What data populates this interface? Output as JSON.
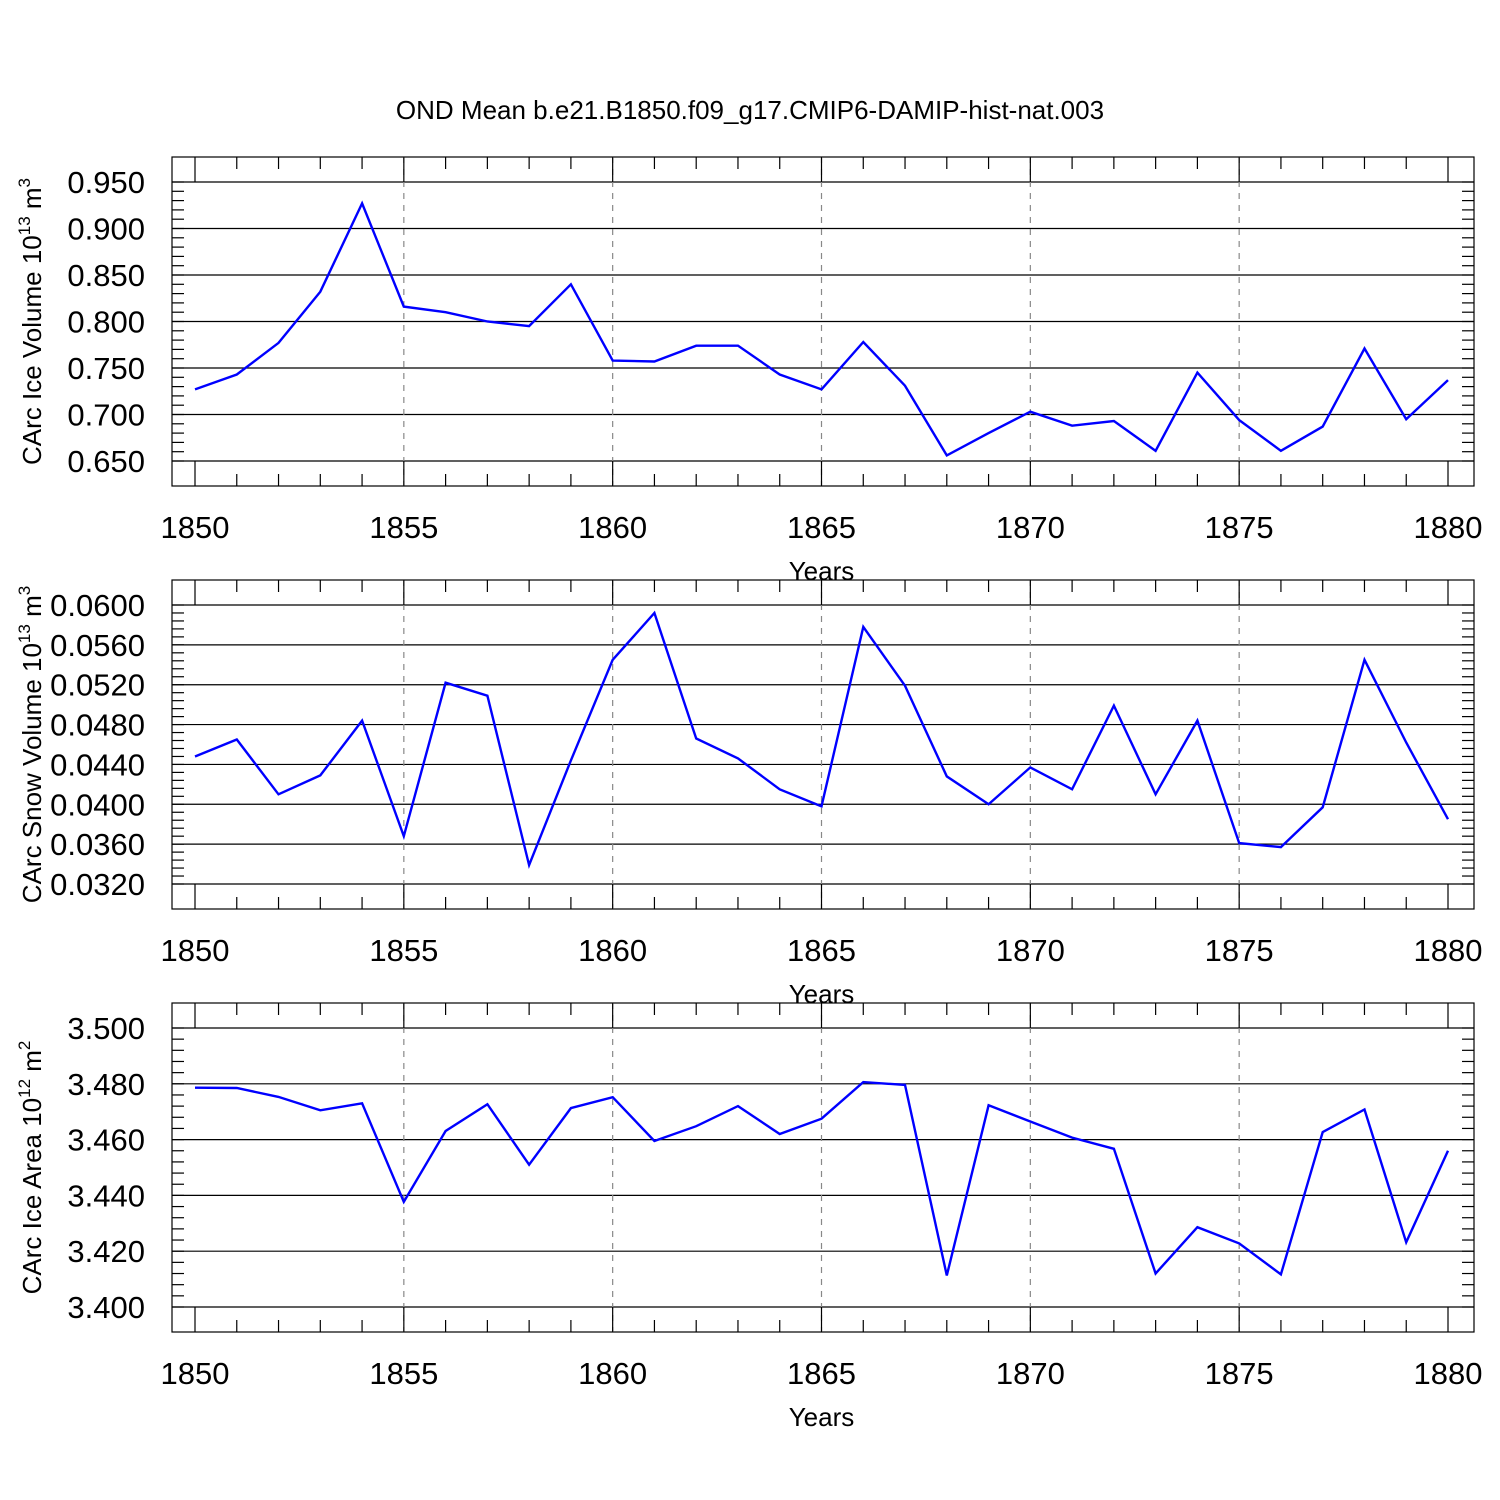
{
  "title": "OND Mean b.e21.B1850.f09_g17.CMIP6-DAMIP-hist-nat.003",
  "chart_data": [
    {
      "type": "line",
      "xlabel": "Years",
      "ylabel": "CArc Ice Volume 10",
      "ylabel_exp": "13",
      "ylabel_unit": " m",
      "ylabel_unit_exp": "3",
      "xlim": [
        1850,
        1880
      ],
      "ylim": [
        0.65,
        0.95
      ],
      "xticks": [
        "1850",
        "1855",
        "1860",
        "1865",
        "1870",
        "1875",
        "1880"
      ],
      "yticks": [
        "0.650",
        "0.700",
        "0.750",
        "0.800",
        "0.850",
        "0.900",
        "0.950"
      ],
      "yminor": 0.01,
      "grid": "vertical-dashed",
      "color": "#0000ff",
      "x": [
        1850,
        1851,
        1852,
        1853,
        1854,
        1855,
        1856,
        1857,
        1858,
        1859,
        1860,
        1861,
        1862,
        1863,
        1864,
        1865,
        1866,
        1867,
        1868,
        1869,
        1870,
        1871,
        1872,
        1873,
        1874,
        1875,
        1876,
        1877,
        1878,
        1879,
        1880
      ],
      "y": [
        0.727,
        0.743,
        0.777,
        0.832,
        0.927,
        0.816,
        0.81,
        0.8,
        0.795,
        0.84,
        0.758,
        0.757,
        0.774,
        0.774,
        0.743,
        0.727,
        0.778,
        0.731,
        0.656,
        0.68,
        0.703,
        0.688,
        0.693,
        0.661,
        0.745,
        0.694,
        0.661,
        0.687,
        0.771,
        0.695,
        0.737
      ]
    },
    {
      "type": "line",
      "xlabel": "Years",
      "ylabel": "CArc Snow Volume 10",
      "ylabel_exp": "13",
      "ylabel_unit": " m",
      "ylabel_unit_exp": "3",
      "xlim": [
        1850,
        1880
      ],
      "ylim": [
        0.032,
        0.06
      ],
      "xticks": [
        "1850",
        "1855",
        "1860",
        "1865",
        "1870",
        "1875",
        "1880"
      ],
      "yticks": [
        "0.0320",
        "0.0360",
        "0.0400",
        "0.0440",
        "0.0480",
        "0.0520",
        "0.0560",
        "0.0600"
      ],
      "yminor": 0.0008,
      "grid": "vertical-dashed",
      "color": "#0000ff",
      "x": [
        1850,
        1851,
        1852,
        1853,
        1854,
        1855,
        1856,
        1857,
        1858,
        1859,
        1860,
        1861,
        1862,
        1863,
        1864,
        1865,
        1866,
        1867,
        1868,
        1869,
        1870,
        1871,
        1872,
        1873,
        1874,
        1875,
        1876,
        1877,
        1878,
        1879,
        1880
      ],
      "y": [
        0.0448,
        0.0465,
        0.041,
        0.0429,
        0.0484,
        0.0368,
        0.0522,
        0.0509,
        0.0339,
        0.0444,
        0.0545,
        0.0592,
        0.0466,
        0.0446,
        0.0415,
        0.0398,
        0.0578,
        0.0519,
        0.0428,
        0.04,
        0.0437,
        0.0415,
        0.0499,
        0.041,
        0.0484,
        0.0361,
        0.0357,
        0.0397,
        0.0545,
        0.0462,
        0.0385
      ]
    },
    {
      "type": "line",
      "xlabel": "Years",
      "ylabel": "CArc Ice Area 10",
      "ylabel_exp": "12",
      "ylabel_unit": " m",
      "ylabel_unit_exp": "2",
      "xlim": [
        1850,
        1880
      ],
      "ylim": [
        3.4,
        3.5
      ],
      "xticks": [
        "1850",
        "1855",
        "1860",
        "1865",
        "1870",
        "1875",
        "1880"
      ],
      "yticks": [
        "3.400",
        "3.420",
        "3.440",
        "3.460",
        "3.480",
        "3.500"
      ],
      "yminor": 0.004,
      "grid": "vertical-dashed",
      "color": "#0000ff",
      "x": [
        1850,
        1851,
        1852,
        1853,
        1854,
        1855,
        1856,
        1857,
        1858,
        1859,
        1860,
        1861,
        1862,
        1863,
        1864,
        1865,
        1866,
        1867,
        1868,
        1869,
        1870,
        1871,
        1872,
        1873,
        1874,
        1875,
        1876,
        1877,
        1878,
        1879,
        1880
      ],
      "y": [
        3.4786,
        3.4785,
        3.4753,
        3.4705,
        3.473,
        3.4377,
        3.4631,
        3.4727,
        3.451,
        3.4713,
        3.4752,
        3.4595,
        3.4648,
        3.472,
        3.462,
        3.4675,
        3.4806,
        3.4796,
        3.4113,
        3.4723,
        3.4665,
        3.4607,
        3.4567,
        3.412,
        3.4286,
        3.4228,
        3.4117,
        3.4627,
        3.4708,
        3.4232,
        3.456
      ]
    }
  ]
}
